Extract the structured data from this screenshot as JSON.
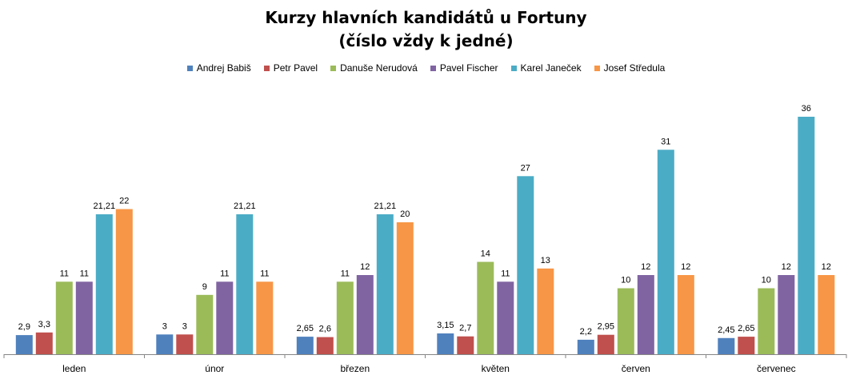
{
  "chart_data": {
    "type": "bar",
    "title_line1": "Kurzy hlavních kandidátů u Fortuny",
    "title_line2": "(číslo vždy k jedné)",
    "categories": [
      "leden",
      "únor",
      "březen",
      "květen",
      "červen",
      "červenec"
    ],
    "series": [
      {
        "name": "Andrej Babiš",
        "color": "#4F81BD",
        "values": [
          2.9,
          3,
          2.65,
          3.15,
          2.2,
          2.45
        ],
        "labels": [
          "2,9",
          "3",
          "2,65",
          "3,15",
          "2,2",
          "2,45"
        ]
      },
      {
        "name": "Petr Pavel",
        "color": "#C0504D",
        "values": [
          3.3,
          3,
          2.6,
          2.7,
          2.95,
          2.65
        ],
        "labels": [
          "3,3",
          "3",
          "2,6",
          "2,7",
          "2,95",
          "2,65"
        ]
      },
      {
        "name": "Danuše Nerudová",
        "color": "#9BBB59",
        "values": [
          11,
          9,
          11,
          14,
          10,
          10
        ],
        "labels": [
          "11",
          "9",
          "11",
          "14",
          "10",
          "10"
        ]
      },
      {
        "name": "Pavel Fischer",
        "color": "#8064A2",
        "values": [
          11,
          11,
          12,
          11,
          12,
          12
        ],
        "labels": [
          "11",
          "11",
          "12",
          "11",
          "12",
          "12"
        ]
      },
      {
        "name": "Karel Janeček",
        "color": "#4BACC6",
        "values": [
          21.21,
          21.21,
          21.21,
          27,
          31,
          36
        ],
        "labels": [
          "21,21",
          "21,21",
          "21,21",
          "27",
          "31",
          "36"
        ]
      },
      {
        "name": "Josef Středula",
        "color": "#F79646",
        "values": [
          22,
          11,
          20,
          13,
          12,
          12
        ],
        "labels": [
          "22",
          "11",
          "20",
          "13",
          "12",
          "12"
        ]
      }
    ],
    "legend_position": "top",
    "grid": false,
    "ylim": [
      0,
      40
    ]
  }
}
